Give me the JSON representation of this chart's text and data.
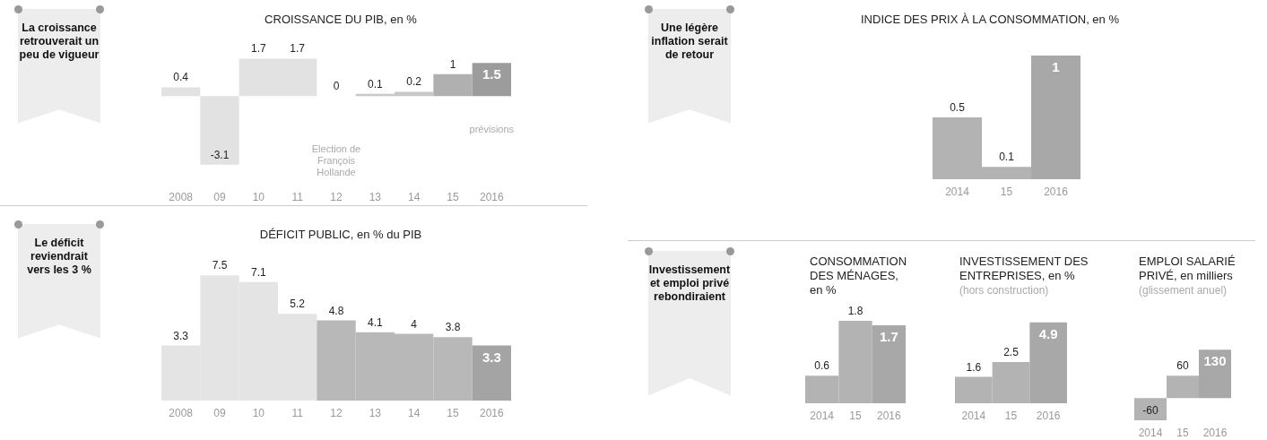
{
  "chart_data": [
    {
      "type": "bar",
      "title": "CROISSANCE DU PIB, en %",
      "categories": [
        "2008",
        "09",
        "10",
        "11",
        "12",
        "13",
        "14",
        "15",
        "2016"
      ],
      "values": [
        0.4,
        -3.1,
        1.7,
        1.7,
        0,
        0.1,
        0.2,
        1,
        1.5
      ],
      "colors": [
        "#e2e2e2",
        "#e2e2e2",
        "#e2e2e2",
        "#e2e2e2",
        "#e2e2e2",
        "#c8c8c8",
        "#c8c8c8",
        "#b0b0b0",
        "#9c9c9c"
      ],
      "data_labels": true,
      "tick_labels": "x",
      "annotations": [
        "La croissance retrouverait un peu de vigueur",
        "Election de François Hollande",
        "prévisions"
      ]
    },
    {
      "type": "bar",
      "title": "INDICE DES PRIX À LA CONSOMMATION, en %",
      "categories": [
        "2014",
        "15",
        "2016"
      ],
      "values": [
        0.5,
        0.1,
        1
      ],
      "colors": [
        "#b3b3b3",
        "#b3b3b3",
        "#a8a8a8"
      ],
      "data_labels": true,
      "tick_labels": "x",
      "annotations": [
        "Une légère inflation serait de retour"
      ]
    },
    {
      "type": "bar",
      "title": "DÉFICIT PUBLIC, en % du PIB",
      "categories": [
        "2008",
        "09",
        "10",
        "11",
        "12",
        "13",
        "14",
        "15",
        "2016"
      ],
      "values": [
        3.3,
        7.5,
        7.1,
        5.2,
        4.8,
        4.1,
        4,
        3.8,
        3.3
      ],
      "colors": [
        "#e4e4e4",
        "#e4e4e4",
        "#e4e4e4",
        "#e4e4e4",
        "#b8b8b8",
        "#b8b8b8",
        "#b8b8b8",
        "#b8b8b8",
        "#a4a4a4"
      ],
      "data_labels": true,
      "tick_labels": "x",
      "annotations": [
        "Le déficit reviendrait vers les 3 %"
      ]
    },
    {
      "type": "bar",
      "title": "CONSOMMATION DES MÉNAGES, en %",
      "categories": [
        "2014",
        "15",
        "2016"
      ],
      "values": [
        0.6,
        1.8,
        1.7
      ],
      "colors": [
        "#b3b3b3",
        "#b3b3b3",
        "#a8a8a8"
      ],
      "data_labels": true,
      "tick_labels": "x",
      "annotations": [
        "Investissement et emploi privé rebondiraient"
      ]
    },
    {
      "type": "bar",
      "title": "INVESTISSEMENT DES ENTREPRISES, en %",
      "subtitle": "(hors construction)",
      "categories": [
        "2014",
        "15",
        "2016"
      ],
      "values": [
        1.6,
        2.5,
        4.9
      ],
      "colors": [
        "#b3b3b3",
        "#b3b3b3",
        "#a8a8a8"
      ],
      "data_labels": true,
      "tick_labels": "x"
    },
    {
      "type": "bar",
      "title": "EMPLOI SALARIÉ PRIVÉ, en milliers",
      "subtitle": "(glissement anuel)",
      "categories": [
        "2014",
        "15",
        "2016"
      ],
      "values": [
        -60,
        60,
        130
      ],
      "colors": [
        "#b3b3b3",
        "#b3b3b3",
        "#a8a8a8"
      ],
      "data_labels": true,
      "tick_labels": "x"
    }
  ]
}
